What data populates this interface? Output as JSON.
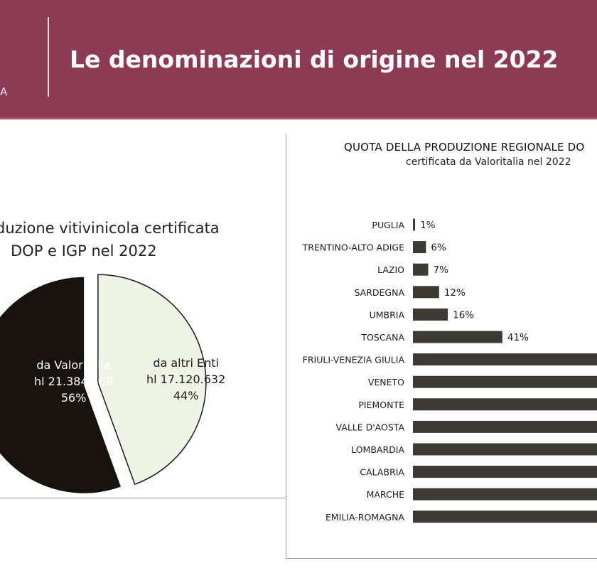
{
  "header": {
    "title": "Le denominazioni di origine nel 2022",
    "brand_fragment": "A"
  },
  "colors": {
    "header_bg": "#8d3a55",
    "pie_valoritalia": "#17120b",
    "pie_altri": "#eef3e3",
    "bars": "#3d3a33"
  },
  "chart_data": [
    {
      "type": "pie",
      "title_lines": [
        "duzione vitivinicola certificata",
        "DOP e IGP nel 2022"
      ],
      "slices": [
        {
          "label_lines": [
            "da Valoritalia",
            "hl 21.384.368",
            "56%"
          ],
          "value": 21384368,
          "percent": 56,
          "color": "#17120b"
        },
        {
          "label_lines": [
            "da altri Enti",
            "hl 17.120.632",
            "44%"
          ],
          "value": 17120632,
          "percent": 44,
          "color": "#eef3e3"
        }
      ]
    },
    {
      "type": "bar",
      "orientation": "horizontal",
      "title": "QUOTA DELLA PRODUZIONE REGIONALE DO",
      "subtitle": "certificata da Valoritalia nel 2022",
      "categories": [
        "PUGLIA",
        "TRENTINO-ALTO ADIGE",
        "LAZIO",
        "SARDEGNA",
        "UMBRIA",
        "TOSCANA",
        "FRIULI-VENEZIA GIULIA",
        "VENETO",
        "PIEMONTE",
        "VALLE D'AOSTA",
        "LOMBARDIA",
        "CALABRIA",
        "MARCHE",
        "EMILIA-ROMAGNA"
      ],
      "values": [
        1,
        6,
        7,
        12,
        16,
        41,
        null,
        null,
        null,
        null,
        null,
        null,
        null,
        null
      ],
      "value_labels": [
        "1%",
        "6%",
        "7%",
        "12%",
        "16%",
        "41%",
        "",
        "",
        "",
        "",
        "",
        "",
        "",
        ""
      ],
      "unit": "%"
    }
  ]
}
